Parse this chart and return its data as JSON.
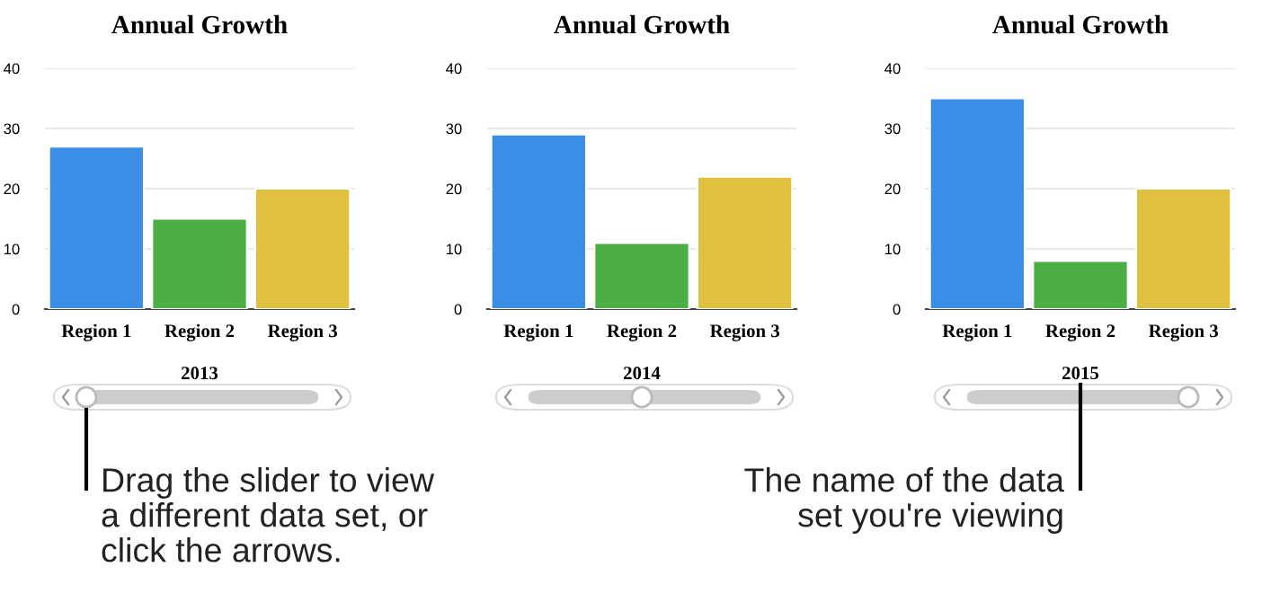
{
  "chart_data": [
    {
      "type": "bar",
      "title": "Annual Growth",
      "xlabel": "2013",
      "categories": [
        "Region 1",
        "Region 2",
        "Region 3"
      ],
      "values": [
        27,
        15,
        20
      ],
      "colors": [
        "#3a8ee6",
        "#4caf45",
        "#e0c040"
      ],
      "ylim": [
        0,
        40
      ],
      "yticks": [
        0,
        10,
        20,
        30,
        40
      ],
      "grid": "y",
      "annotations": [
        "Drag the slider to view\na different data set, or\nclick the arrows."
      ]
    },
    {
      "type": "bar",
      "title": "Annual Growth",
      "xlabel": "2014",
      "categories": [
        "Region 1",
        "Region 2",
        "Region 3"
      ],
      "values": [
        29,
        11,
        22
      ],
      "colors": [
        "#3a8ee6",
        "#4caf45",
        "#e0c040"
      ],
      "ylim": [
        0,
        40
      ],
      "yticks": [
        0,
        10,
        20,
        30,
        40
      ],
      "grid": "y"
    },
    {
      "type": "bar",
      "title": "Annual Growth",
      "xlabel": "2015",
      "categories": [
        "Region 1",
        "Region 2",
        "Region 3"
      ],
      "values": [
        35,
        8,
        20
      ],
      "colors": [
        "#3a8ee6",
        "#4caf45",
        "#e0c040"
      ],
      "ylim": [
        0,
        40
      ],
      "yticks": [
        0,
        10,
        20,
        30,
        40
      ],
      "grid": "y",
      "annotations": [
        "The name of the data\nset you're viewing"
      ]
    }
  ]
}
